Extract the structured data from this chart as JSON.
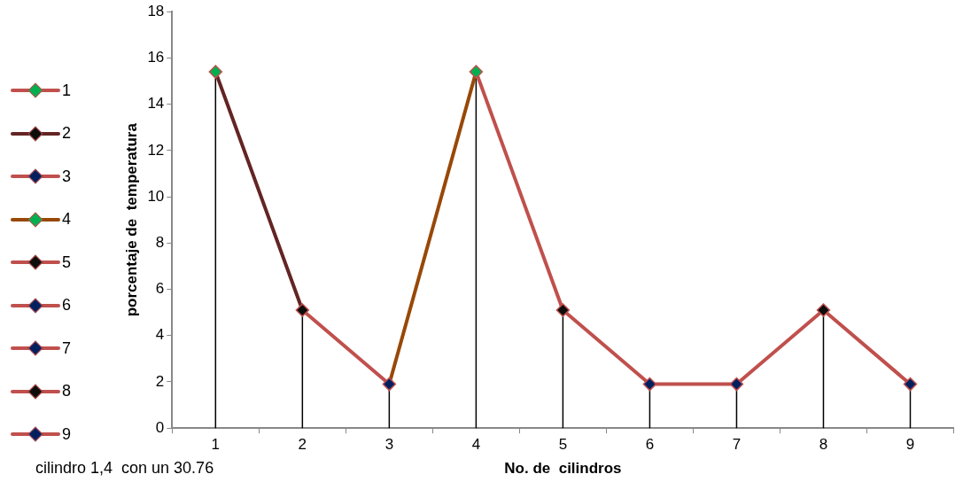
{
  "chart_data": {
    "type": "line",
    "xlabel": "No. de  cilindros",
    "ylabel": "porcentaje de  temperatura",
    "categories": [
      "1",
      "2",
      "3",
      "4",
      "5",
      "6",
      "7",
      "8",
      "9"
    ],
    "series": [
      {
        "color": "#c0504d",
        "marker": "none",
        "values": [
          null,
          5.1,
          1.9,
          null,
          null,
          null,
          null,
          null,
          null
        ]
      },
      {
        "color": "#c0504d",
        "marker": "none",
        "values": [
          null,
          null,
          null,
          15.4,
          5.1,
          1.9,
          1.9,
          5.1,
          1.9
        ]
      },
      {
        "color": "#632523",
        "marker": "none",
        "values": [
          15.4,
          5.1,
          null,
          null,
          null,
          null,
          null,
          null,
          null
        ]
      },
      {
        "color": "#984807",
        "marker": "none",
        "values": [
          null,
          null,
          1.9,
          15.4,
          null,
          null,
          null,
          null,
          null
        ]
      },
      {
        "type": "lollipop",
        "color": "#000000",
        "marker": "diamond",
        "values": [
          15.4,
          5.1,
          1.9,
          15.4,
          5.1,
          1.9,
          1.9,
          5.1,
          1.9
        ],
        "colors": [
          "#00b050",
          "#0d0d0d",
          "#002060",
          "#00b050",
          "#0d0d0d",
          "#002060",
          "#002060",
          "#0d0d0d",
          "#002060"
        ]
      }
    ],
    "ylim": [
      0,
      18
    ],
    "yticks": [
      0,
      2,
      4,
      6,
      8,
      10,
      12,
      14,
      16,
      18
    ],
    "line_style": "solid",
    "annotations": [
      "cilindro 1,4  con un 30.76"
    ]
  }
}
